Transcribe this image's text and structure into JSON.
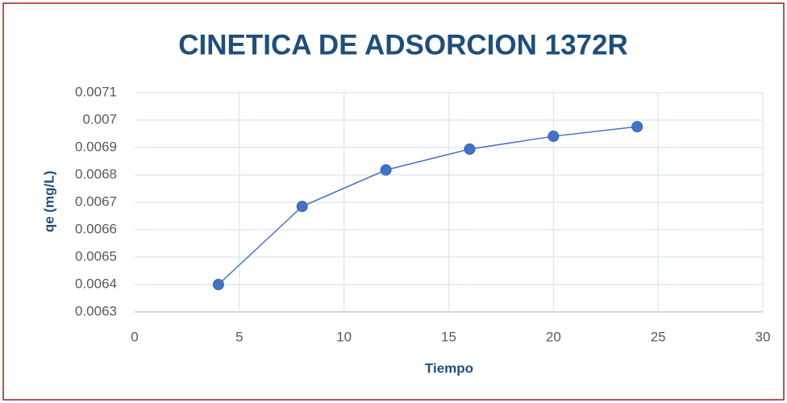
{
  "chart_data": {
    "type": "line",
    "title": "CINETICA DE ADSORCION 1372R",
    "x_label": "Tiempo",
    "y_label": "qe (mg/L)",
    "x": [
      4,
      8,
      12,
      16,
      20,
      24
    ],
    "series": [
      {
        "name": "qe",
        "color": "#4472c4",
        "values": [
          0.0064,
          0.006685,
          0.006818,
          0.006894,
          0.006941,
          0.006976
        ]
      }
    ],
    "xlim": [
      0,
      30
    ],
    "xticks": [
      0,
      5,
      10,
      15,
      20,
      25,
      30
    ],
    "ylim": [
      0.0063,
      0.0071
    ],
    "yticks": [
      0.0063,
      0.0064,
      0.0065,
      0.0066,
      0.0067,
      0.0068,
      0.0069,
      0.007,
      0.0071
    ],
    "grid": true,
    "markers": true
  }
}
